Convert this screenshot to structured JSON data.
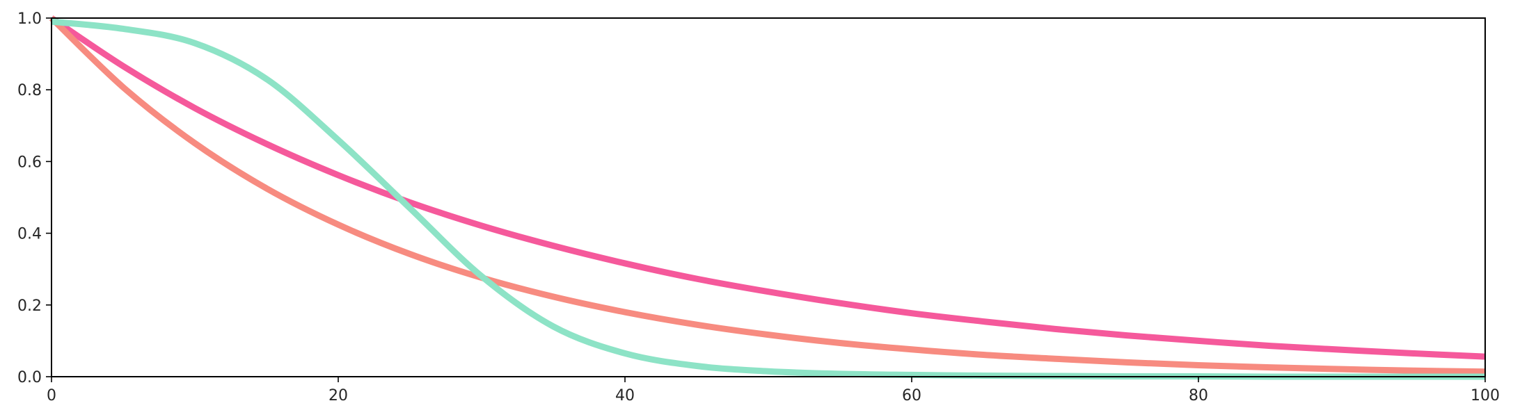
{
  "chart_data": {
    "type": "line",
    "title": "",
    "xlabel": "",
    "ylabel": "",
    "xlim": [
      0,
      100
    ],
    "ylim": [
      0,
      1
    ],
    "grid": false,
    "legend": "none",
    "x_ticks": [
      "0",
      "20",
      "40",
      "60",
      "80",
      "100"
    ],
    "y_ticks": [
      "0.0",
      "0.2",
      "0.4",
      "0.6",
      "0.8",
      "1.0"
    ],
    "x": [
      0,
      5,
      10,
      15,
      20,
      25,
      30,
      35,
      40,
      45,
      50,
      55,
      60,
      65,
      70,
      75,
      80,
      85,
      90,
      95,
      100
    ],
    "series": [
      {
        "color": "#f5599b",
        "values": [
          1.0,
          0.866,
          0.749,
          0.649,
          0.562,
          0.486,
          0.421,
          0.365,
          0.316,
          0.273,
          0.237,
          0.205,
          0.177,
          0.154,
          0.133,
          0.115,
          0.1,
          0.086,
          0.075,
          0.065,
          0.056
        ]
      },
      {
        "color": "#f78b80",
        "values": [
          1.0,
          0.807,
          0.651,
          0.525,
          0.424,
          0.342,
          0.276,
          0.223,
          0.18,
          0.145,
          0.117,
          0.094,
          0.076,
          0.061,
          0.05,
          0.04,
          0.032,
          0.026,
          0.021,
          0.017,
          0.014
        ]
      },
      {
        "color": "#8de3c6",
        "values": [
          0.99,
          0.97,
          0.93,
          0.83,
          0.66,
          0.47,
          0.28,
          0.14,
          0.065,
          0.03,
          0.015,
          0.008,
          0.005,
          0.003,
          0.002,
          0.001,
          0.001,
          0.0,
          0.0,
          0.0,
          0.0
        ]
      }
    ]
  }
}
